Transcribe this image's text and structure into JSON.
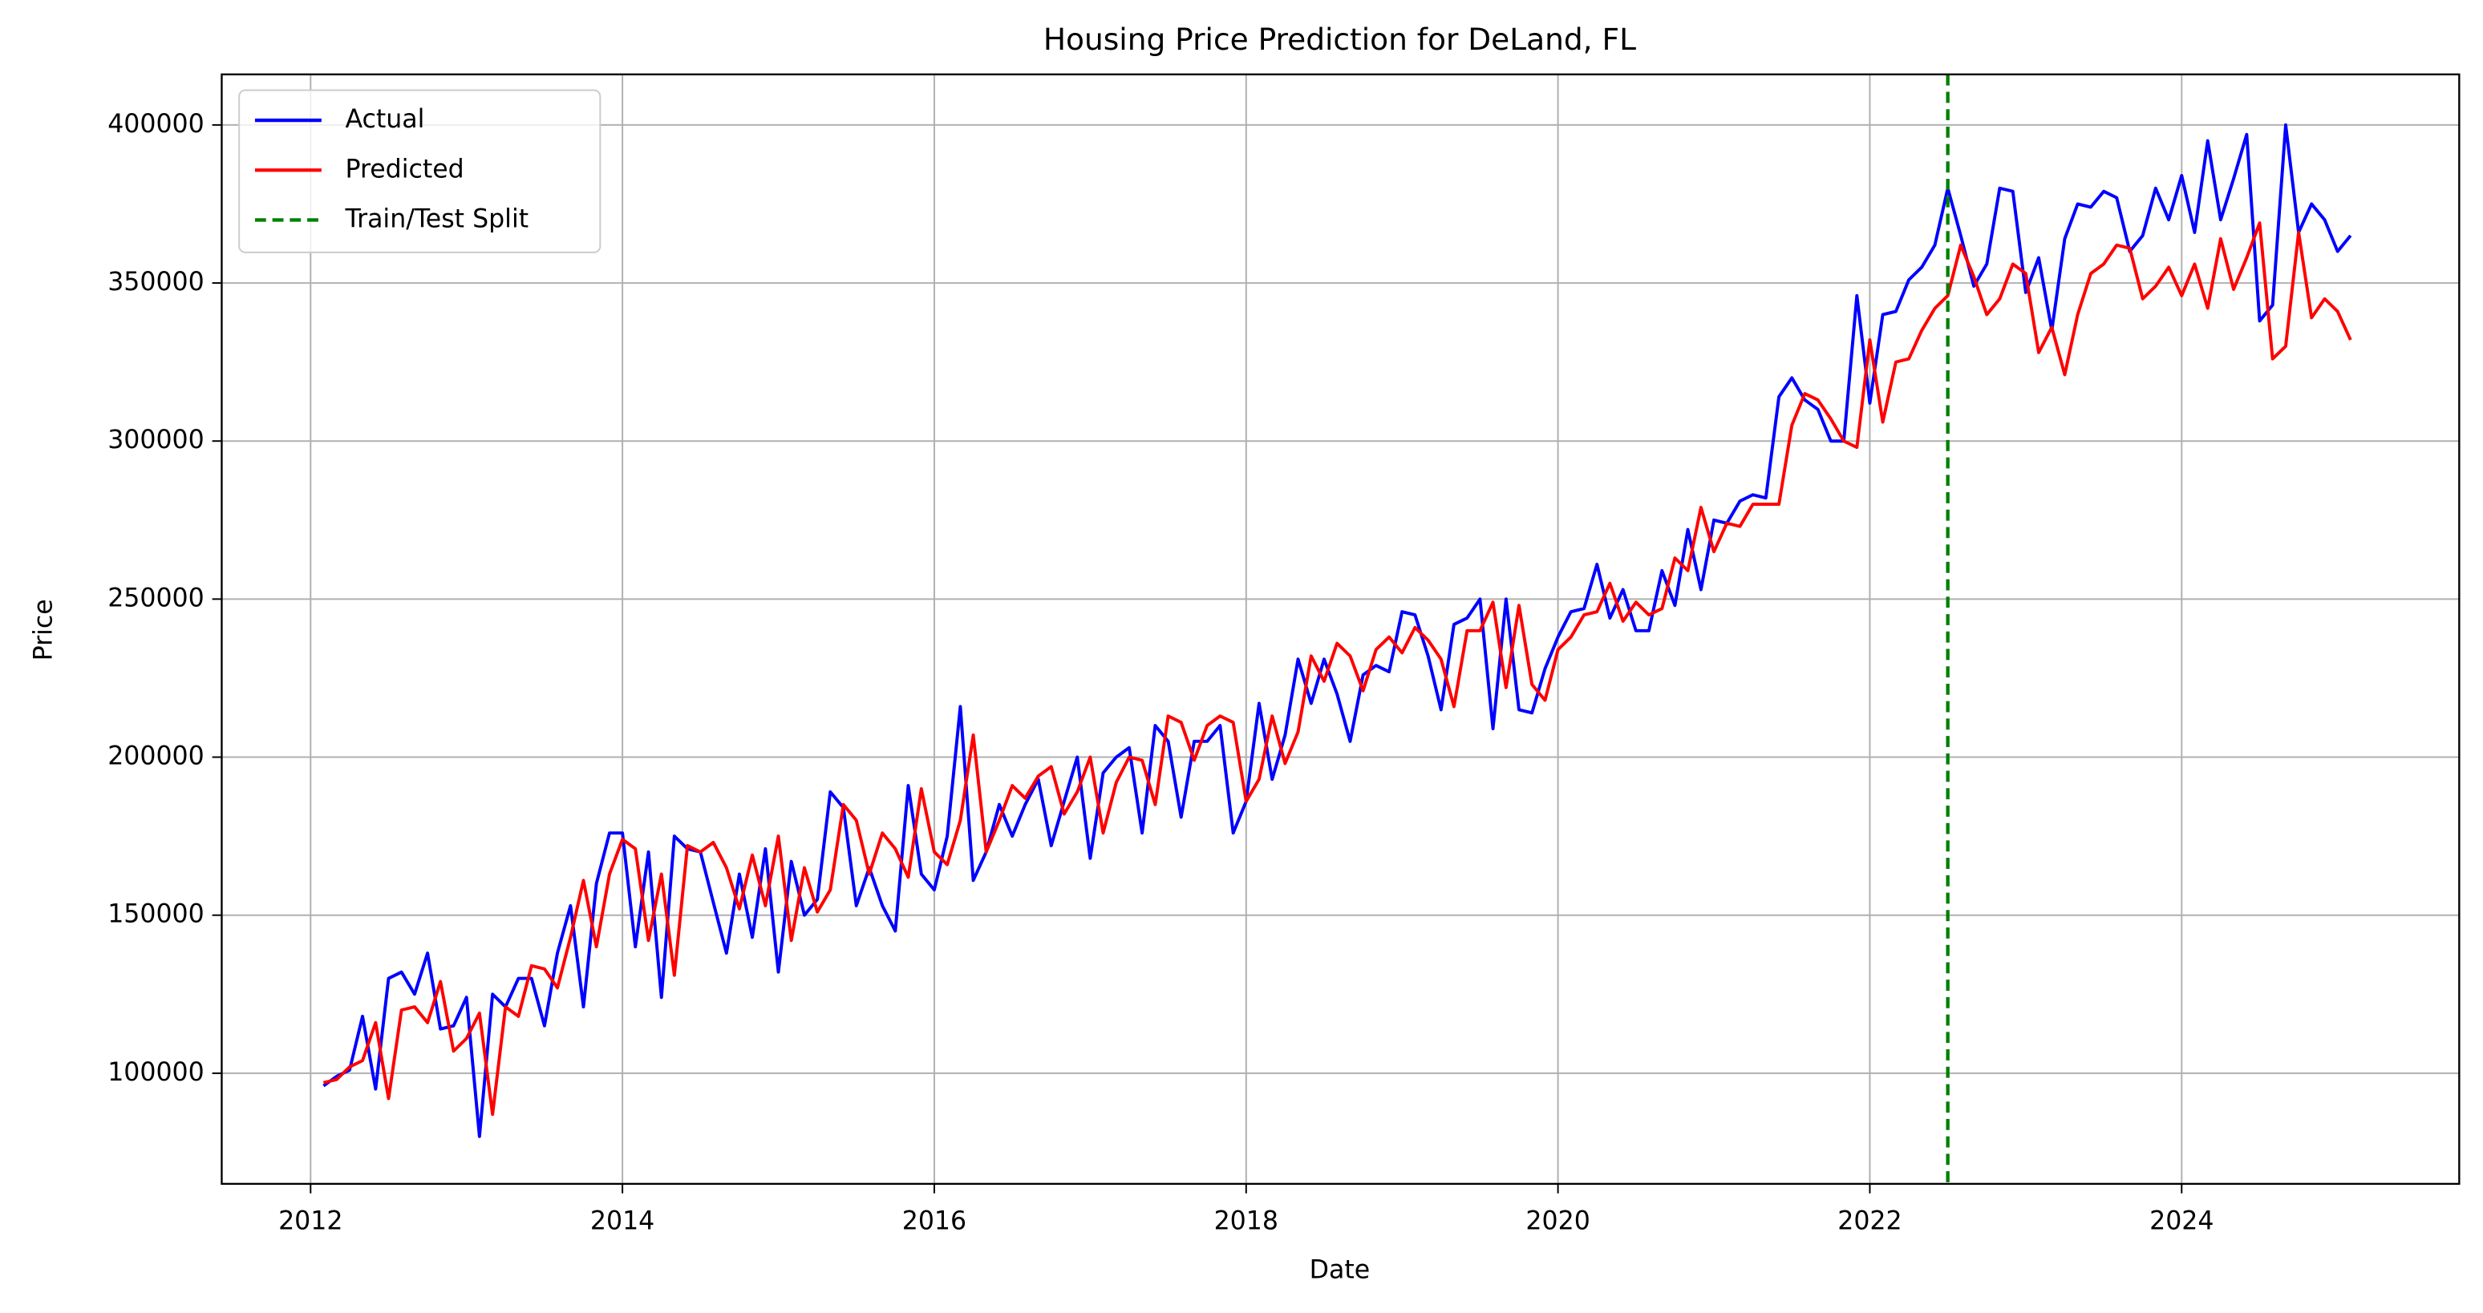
{
  "chart_data": {
    "type": "line",
    "title": "Housing Price Prediction for DeLand, FL",
    "xlabel": "Date",
    "ylabel": "Price",
    "x": [
      2012.083,
      2012.167,
      2012.25,
      2012.333,
      2012.417,
      2012.5,
      2012.583,
      2012.667,
      2012.75,
      2012.833,
      2012.917,
      2013,
      2013.083,
      2013.167,
      2013.25,
      2013.333,
      2013.417,
      2013.5,
      2013.583,
      2013.667,
      2013.75,
      2013.833,
      2013.917,
      2014,
      2014.083,
      2014.167,
      2014.25,
      2014.333,
      2014.417,
      2014.5,
      2014.583,
      2014.667,
      2014.75,
      2014.833,
      2014.917,
      2015,
      2015.083,
      2015.167,
      2015.25,
      2015.333,
      2015.417,
      2015.5,
      2015.583,
      2015.667,
      2015.75,
      2015.833,
      2015.917,
      2016,
      2016.083,
      2016.167,
      2016.25,
      2016.333,
      2016.417,
      2016.5,
      2016.583,
      2016.667,
      2016.75,
      2016.833,
      2016.917,
      2017,
      2017.083,
      2017.167,
      2017.25,
      2017.333,
      2017.417,
      2017.5,
      2017.583,
      2017.667,
      2017.75,
      2017.833,
      2017.917,
      2018,
      2018.083,
      2018.167,
      2018.25,
      2018.333,
      2018.417,
      2018.5,
      2018.583,
      2018.667,
      2018.75,
      2018.833,
      2018.917,
      2019,
      2019.083,
      2019.167,
      2019.25,
      2019.333,
      2019.417,
      2019.5,
      2019.583,
      2019.667,
      2019.75,
      2019.833,
      2019.917,
      2020,
      2020.083,
      2020.167,
      2020.25,
      2020.333,
      2020.417,
      2020.5,
      2020.583,
      2020.667,
      2020.75,
      2020.833,
      2020.917,
      2021,
      2021.083,
      2021.167,
      2021.25,
      2021.333,
      2021.417,
      2021.5,
      2021.583,
      2021.667,
      2021.75,
      2021.833,
      2021.917,
      2022,
      2022.083,
      2022.167,
      2022.25,
      2022.333,
      2022.417,
      2022.5,
      2022.583,
      2022.667,
      2022.75,
      2022.833,
      2022.917,
      2023,
      2023.083,
      2023.167,
      2023.25,
      2023.333,
      2023.417,
      2023.5,
      2023.583,
      2023.667,
      2023.75,
      2023.833,
      2023.917,
      2024,
      2024.083,
      2024.167,
      2024.25,
      2024.333,
      2024.417,
      2024.5,
      2024.583,
      2024.667,
      2024.75,
      2024.833,
      2024.917,
      2025,
      2025.083
    ],
    "series": [
      {
        "name": "Actual",
        "color": "#0000ff",
        "values": [
          96000,
          99000,
          101000,
          118000,
          95000,
          130000,
          132000,
          125000,
          138000,
          114000,
          115000,
          124000,
          80000,
          125000,
          121000,
          130000,
          130000,
          115000,
          138000,
          153000,
          121000,
          160000,
          176000,
          176000,
          140000,
          170000,
          124000,
          175000,
          171000,
          170000,
          154000,
          138000,
          163000,
          143000,
          171000,
          132000,
          167000,
          150000,
          155000,
          189000,
          184000,
          153000,
          165000,
          153000,
          145000,
          191000,
          163000,
          158000,
          175000,
          216000,
          161000,
          170000,
          185000,
          175000,
          185000,
          193000,
          172000,
          186000,
          200000,
          168000,
          195000,
          200000,
          203000,
          176000,
          210000,
          205000,
          181000,
          205000,
          205000,
          210000,
          176000,
          186000,
          217000,
          193000,
          207000,
          231000,
          217000,
          231000,
          220000,
          205000,
          226000,
          229000,
          227000,
          246000,
          245000,
          232000,
          215000,
          242000,
          244000,
          250000,
          209000,
          250000,
          215000,
          214000,
          228000,
          238000,
          246000,
          247000,
          261000,
          244000,
          253000,
          240000,
          240000,
          259000,
          248000,
          272000,
          253000,
          275000,
          274000,
          281000,
          283000,
          282000,
          314000,
          320000,
          313000,
          310000,
          300000,
          300000,
          346000,
          312000,
          340000,
          341000,
          351000,
          355000,
          362000,
          380000,
          365000,
          349000,
          356000,
          380000,
          379000,
          347000,
          358000,
          335000,
          364000,
          375000,
          374000,
          379000,
          377000,
          360000,
          365000,
          380000,
          370000,
          384000,
          366000,
          395000,
          370000,
          383000,
          397000,
          338000,
          343000,
          400000,
          366000,
          375000,
          370000,
          360000,
          365000
        ]
      },
      {
        "name": "Predicted",
        "color": "#ff0000",
        "values": [
          97000,
          98000,
          102000,
          104000,
          116000,
          92000,
          120000,
          121000,
          116000,
          129000,
          107000,
          111000,
          119000,
          87000,
          121000,
          118000,
          134000,
          133000,
          127000,
          143000,
          161000,
          140000,
          163000,
          174000,
          171000,
          142000,
          163000,
          131000,
          172000,
          170000,
          173000,
          165000,
          152000,
          169000,
          153000,
          175000,
          142000,
          165000,
          151000,
          158000,
          185000,
          180000,
          163000,
          176000,
          171000,
          162000,
          190000,
          170000,
          166000,
          180000,
          207000,
          170000,
          180000,
          191000,
          187000,
          194000,
          197000,
          182000,
          189000,
          200000,
          176000,
          192000,
          200000,
          199000,
          185000,
          213000,
          211000,
          199000,
          210000,
          213000,
          211000,
          186000,
          193000,
          213000,
          198000,
          208000,
          232000,
          224000,
          236000,
          232000,
          221000,
          234000,
          238000,
          233000,
          241000,
          237000,
          231000,
          216000,
          240000,
          240000,
          249000,
          222000,
          248000,
          223000,
          218000,
          234000,
          238000,
          245000,
          246000,
          255000,
          243000,
          249000,
          245000,
          247000,
          263000,
          259000,
          279000,
          265000,
          274000,
          273000,
          280000,
          280000,
          280000,
          305000,
          315000,
          313000,
          307000,
          300000,
          298000,
          332000,
          306000,
          325000,
          326000,
          335000,
          342000,
          346000,
          362000,
          352000,
          340000,
          345000,
          356000,
          353000,
          328000,
          336000,
          321000,
          340000,
          353000,
          356000,
          362000,
          361000,
          345000,
          349000,
          355000,
          346000,
          356000,
          342000,
          364000,
          348000,
          358000,
          369000,
          326000,
          330000,
          366000,
          339000,
          345000,
          341000,
          332000
        ]
      }
    ],
    "vline": {
      "name": "Train/Test Split",
      "x": 2022.5,
      "color": "#008000"
    },
    "xlim": [
      2011.43,
      2025.78
    ],
    "xticks": [
      2012,
      2014,
      2016,
      2018,
      2020,
      2022,
      2024
    ],
    "ylim": [
      65000,
      416000
    ],
    "yticks": [
      100000,
      150000,
      200000,
      250000,
      300000,
      350000,
      400000
    ],
    "grid": true,
    "legend": "upper left"
  }
}
